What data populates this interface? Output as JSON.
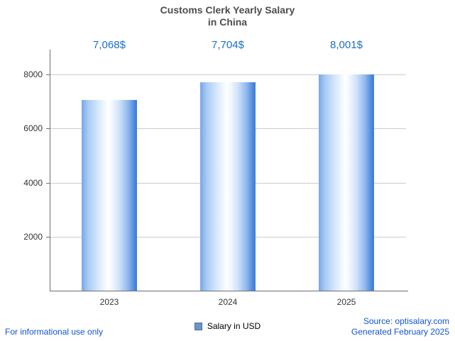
{
  "title_lines": [
    "Customs Clerk Yearly Salary",
    "in China"
  ],
  "chart_data": {
    "type": "bar",
    "title": "Customs Clerk Yearly Salary in China",
    "categories": [
      "2023",
      "2024",
      "2025"
    ],
    "values": [
      7068,
      7704,
      8001
    ],
    "value_labels": [
      "7,068$",
      "7,704$",
      "8,001$"
    ],
    "xlabel": "",
    "ylabel": "",
    "ylim": [
      0,
      8920
    ],
    "yticks": [
      2000,
      4000,
      6000,
      8000
    ],
    "grid": true,
    "legend_position": "bottom",
    "legend": [
      {
        "label": "Salary in USD",
        "color": "#6d93c8",
        "border": "#4a6fa3"
      }
    ]
  },
  "colors": {
    "value_label": "#1b6fc8",
    "link_text": "#1155cc",
    "gridline": "#cccccc",
    "axis": "#6e6e6e"
  },
  "footer": {
    "disclaimer": "For informational use only",
    "source": "Source: optisalary.com",
    "generated": "Generated February 2025"
  }
}
